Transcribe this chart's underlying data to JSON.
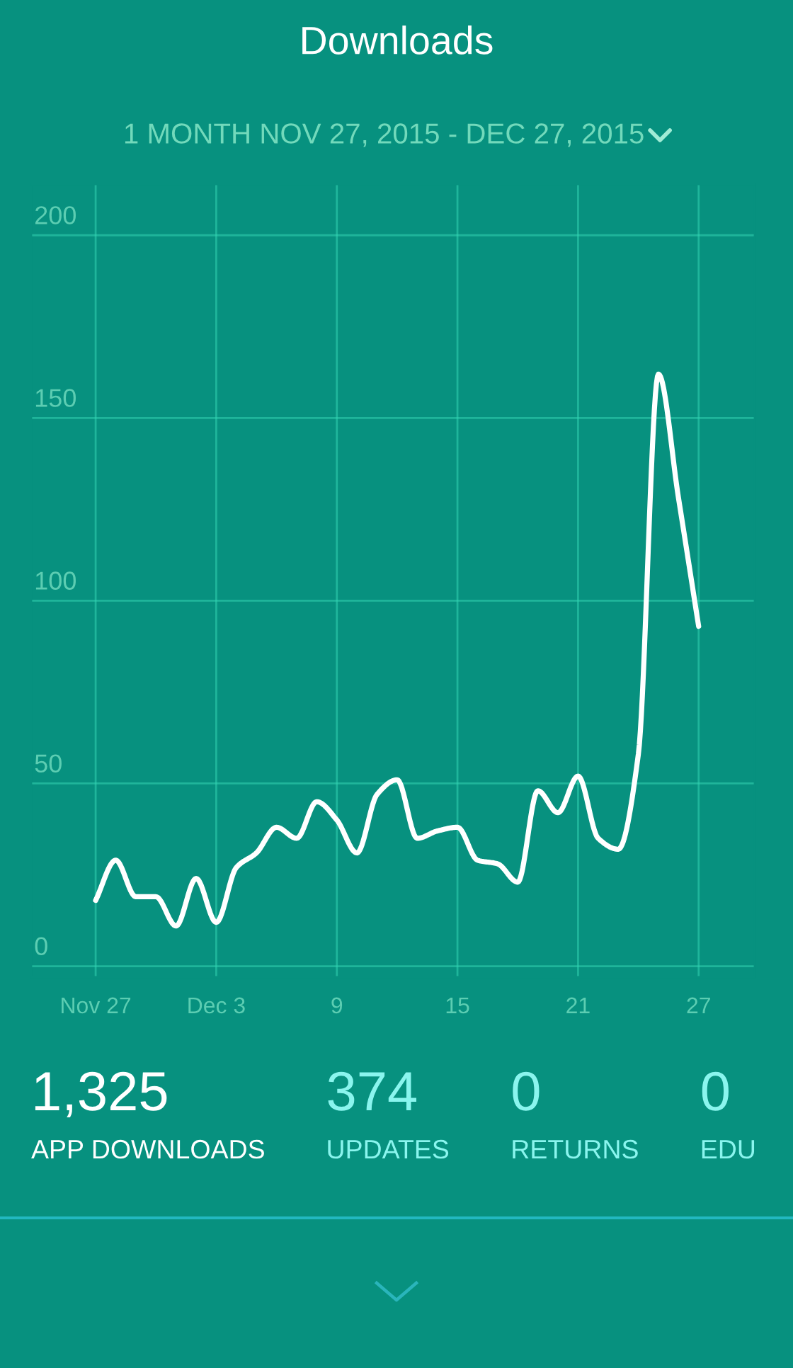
{
  "chart_data": [
    {
      "type": "line",
      "title": "Downloads",
      "subtitle": "1 MONTH NOV 27, 2015 - DEC 27, 2015",
      "x": [
        "2015-11-27",
        "2015-11-28",
        "2015-11-29",
        "2015-11-30",
        "2015-12-01",
        "2015-12-02",
        "2015-12-03",
        "2015-12-04",
        "2015-12-05",
        "2015-12-06",
        "2015-12-07",
        "2015-12-08",
        "2015-12-09",
        "2015-12-10",
        "2015-12-11",
        "2015-12-12",
        "2015-12-13",
        "2015-12-14",
        "2015-12-15",
        "2015-12-16",
        "2015-12-17",
        "2015-12-18",
        "2015-12-19",
        "2015-12-20",
        "2015-12-21",
        "2015-12-22",
        "2015-12-23",
        "2015-12-24",
        "2015-12-25",
        "2015-12-26",
        "2015-12-27"
      ],
      "series": [
        {
          "color": "#ffffff",
          "values": [
            18,
            29,
            19,
            19,
            11,
            24,
            12,
            27,
            31,
            38,
            35,
            45,
            40,
            31,
            47,
            51,
            35,
            37,
            38,
            29,
            28,
            23,
            48,
            42,
            52,
            35,
            32,
            58,
            162,
            128,
            93
          ]
        }
      ],
      "xlim": [
        "2015-11-23T19:00",
        "2015-12-29T19:00"
      ],
      "xticks": [
        {
          "value": "2015-11-27",
          "label": "Nov 27"
        },
        {
          "value": "2015-12-03",
          "label": "Dec 3"
        },
        {
          "value": "2015-12-09",
          "label": "9"
        },
        {
          "value": "2015-12-15",
          "label": "15"
        },
        {
          "value": "2015-12-21",
          "label": "21"
        },
        {
          "value": "2015-12-27",
          "label": "27"
        }
      ],
      "ylim": [
        -3,
        214
      ],
      "yticks": [
        0,
        50,
        100,
        150,
        200
      ],
      "grid": true,
      "line_style": "solid"
    },
    {
      "type": "other",
      "categories": [
        "APP DOWNLOADS",
        "UPDATES",
        "RETURNS",
        "EDU"
      ],
      "values": [
        1325,
        374,
        0,
        0
      ],
      "value_labels": [
        "1,325",
        "374",
        "0",
        "0"
      ],
      "colors": [
        "#ffffff",
        "#8af5ee",
        "#8af5ee",
        "#8af5ee"
      ]
    }
  ]
}
